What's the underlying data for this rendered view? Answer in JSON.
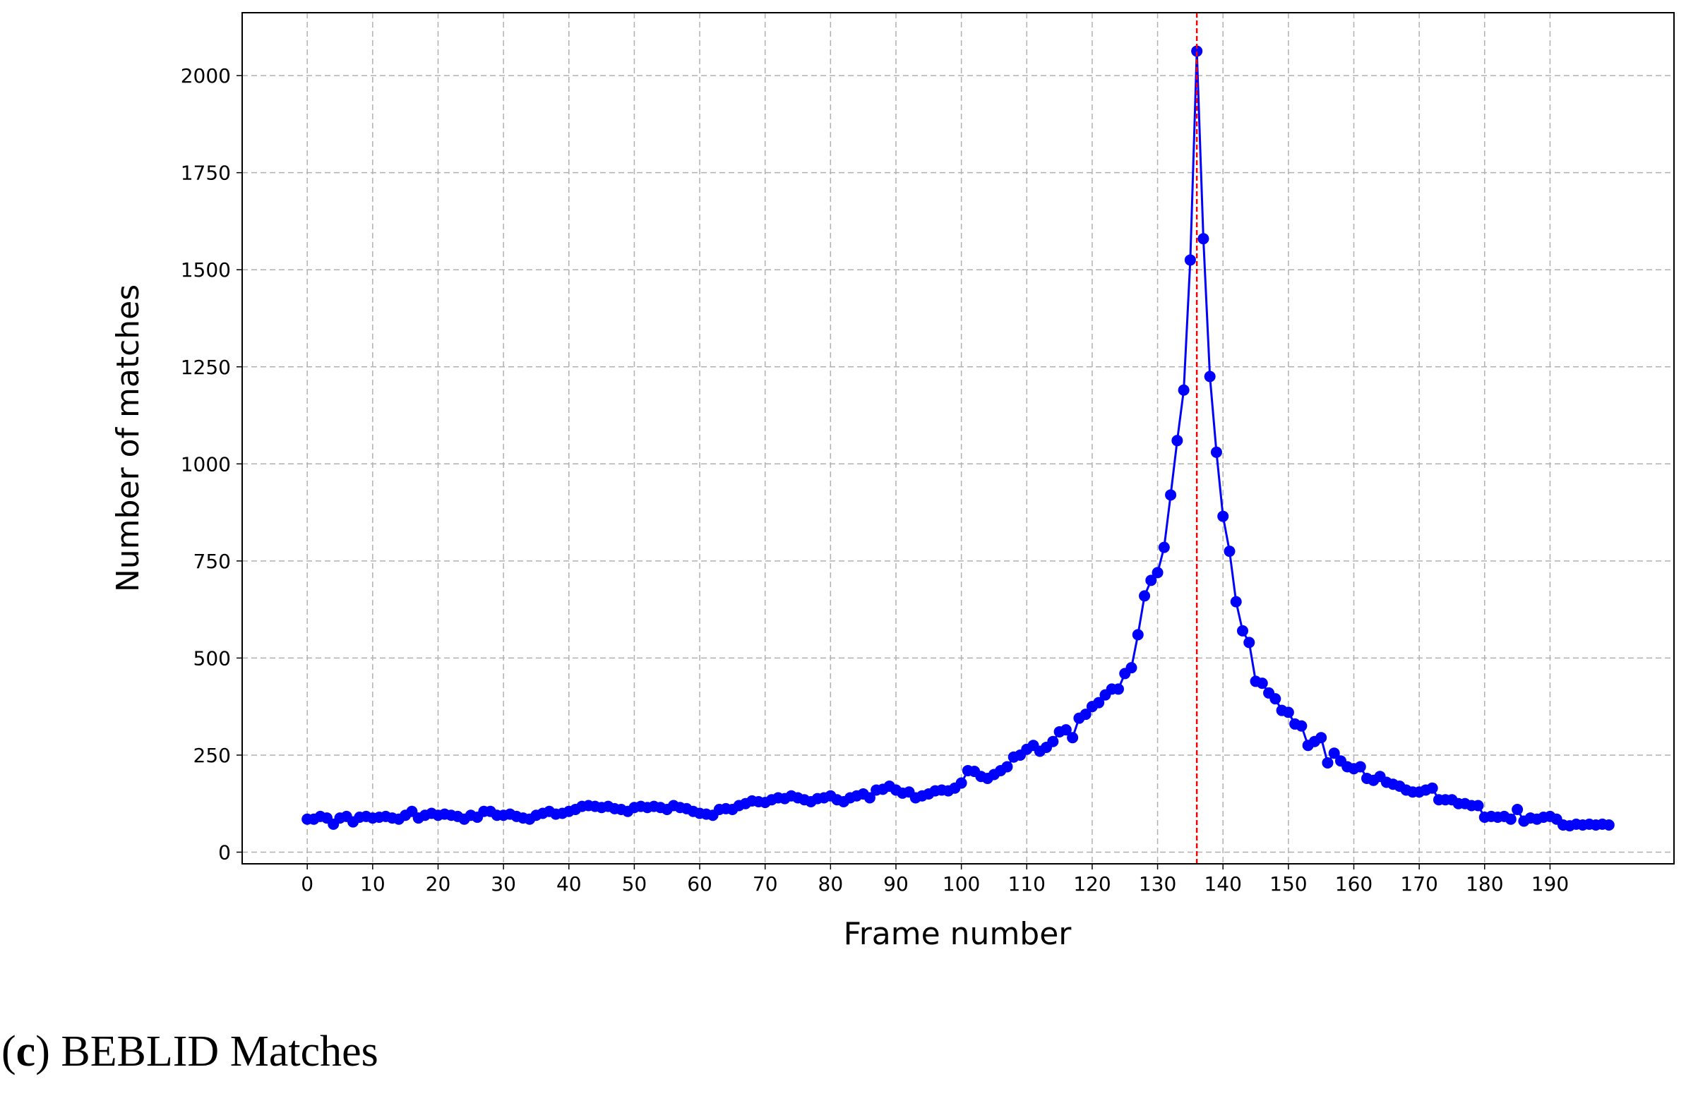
{
  "chart_data": {
    "type": "line",
    "xlabel": "Frame number",
    "ylabel": "Number of matches",
    "x": [
      0,
      1,
      2,
      3,
      4,
      5,
      6,
      7,
      8,
      9,
      10,
      11,
      12,
      13,
      14,
      15,
      16,
      17,
      18,
      19,
      20,
      21,
      22,
      23,
      24,
      25,
      26,
      27,
      28,
      29,
      30,
      31,
      32,
      33,
      34,
      35,
      36,
      37,
      38,
      39,
      40,
      41,
      42,
      43,
      44,
      45,
      46,
      47,
      48,
      49,
      50,
      51,
      52,
      53,
      54,
      55,
      56,
      57,
      58,
      59,
      60,
      61,
      62,
      63,
      64,
      65,
      66,
      67,
      68,
      69,
      70,
      71,
      72,
      73,
      74,
      75,
      76,
      77,
      78,
      79,
      80,
      81,
      82,
      83,
      84,
      85,
      86,
      87,
      88,
      89,
      90,
      91,
      92,
      93,
      94,
      95,
      96,
      97,
      98,
      99,
      100,
      101,
      102,
      103,
      104,
      105,
      106,
      107,
      108,
      109,
      110,
      111,
      112,
      113,
      114,
      115,
      116,
      117,
      118,
      119,
      120,
      121,
      122,
      123,
      124,
      125,
      126,
      127,
      128,
      129,
      130,
      131,
      132,
      133,
      134,
      135,
      136,
      137,
      138,
      139,
      140,
      141,
      142,
      143,
      144,
      145,
      146,
      147,
      148,
      149,
      150,
      151,
      152,
      153,
      154,
      155,
      156,
      157,
      158,
      159,
      160,
      161,
      162,
      163,
      164,
      165,
      166,
      167,
      168,
      169,
      170,
      171,
      172,
      173,
      174,
      175,
      176,
      177,
      178,
      179,
      180,
      181,
      182,
      183,
      184,
      185,
      186,
      187,
      188,
      189,
      190,
      191,
      192,
      193,
      194,
      195,
      196,
      197,
      198,
      199
    ],
    "series": [
      {
        "color": "#0000ff",
        "values": [
          85,
          85,
          92,
          88,
          72,
          88,
          92,
          78,
          90,
          92,
          88,
          90,
          92,
          88,
          85,
          95,
          105,
          88,
          95,
          100,
          95,
          98,
          95,
          92,
          85,
          95,
          90,
          105,
          105,
          95,
          95,
          98,
          92,
          88,
          85,
          95,
          100,
          105,
          98,
          100,
          105,
          110,
          118,
          120,
          118,
          115,
          118,
          112,
          110,
          105,
          115,
          118,
          115,
          118,
          115,
          110,
          120,
          115,
          112,
          105,
          100,
          98,
          95,
          110,
          112,
          110,
          120,
          125,
          132,
          130,
          128,
          135,
          140,
          138,
          145,
          140,
          135,
          130,
          138,
          140,
          145,
          135,
          130,
          140,
          145,
          150,
          140,
          160,
          162,
          170,
          160,
          152,
          155,
          140,
          145,
          150,
          158,
          160,
          158,
          165,
          178,
          210,
          208,
          195,
          190,
          200,
          210,
          220,
          245,
          250,
          265,
          275,
          260,
          270,
          285,
          310,
          315,
          295,
          345,
          355,
          375,
          385,
          405,
          420,
          420,
          460,
          475,
          560,
          660,
          700,
          720,
          785,
          920,
          1060,
          1190,
          1525,
          2063,
          1580,
          1225,
          1030,
          865,
          775,
          645,
          570,
          540,
          440,
          435,
          410,
          395,
          365,
          360,
          330,
          325,
          275,
          285,
          295,
          230,
          255,
          235,
          220,
          215,
          220,
          190,
          185,
          195,
          180,
          175,
          170,
          160,
          155,
          155,
          160,
          165,
          135,
          135,
          135,
          125,
          125,
          120,
          120,
          90,
          92,
          90,
          92,
          85,
          110,
          80,
          88,
          85,
          90,
          92,
          85,
          70,
          68,
          72,
          70,
          72,
          70,
          72,
          70
        ]
      }
    ],
    "vline": {
      "x": 136,
      "color": "#ff0000"
    },
    "xlim": [
      -9.95,
      208.95
    ],
    "xticks": [
      0,
      10,
      20,
      30,
      40,
      50,
      60,
      70,
      80,
      90,
      100,
      110,
      120,
      130,
      140,
      150,
      160,
      170,
      180,
      190
    ],
    "ylim": [
      -30,
      2162
    ],
    "yticks": [
      0,
      250,
      500,
      750,
      1000,
      1250,
      1500,
      1750,
      2000
    ],
    "grid": true,
    "caption": [
      "(",
      "c",
      ") BEBLID Matches"
    ]
  }
}
